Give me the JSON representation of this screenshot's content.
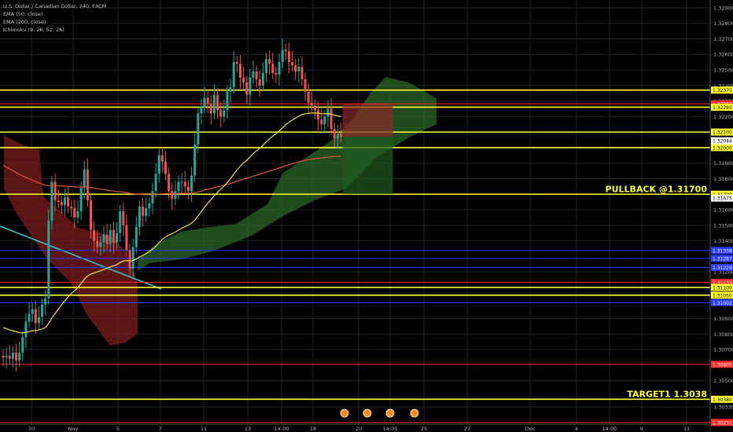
{
  "legend": {
    "symbol_line": "U.S. Dollar / Canadian Dollar, 240, FXCM",
    "ema50": "EMA (50, close)",
    "ema200": "EMA (200, close)",
    "ichimoku": "Ichimoku (9, 26, 52, 26)"
  },
  "colors": {
    "background": "#000000",
    "grid": "#1f2530",
    "up": "#26a69a",
    "down": "#ef5350",
    "ema50": "#f0e442",
    "ema200": "#e0533f",
    "kumo_bull": "#2e6b2a",
    "kumo_bear": "#7a1c1c",
    "hline_yellow": "#ffff33",
    "hline_blue": "#2a3bff",
    "hline_red": "#ff2a2a",
    "trendline": "#39c7c7"
  },
  "chart_data": {
    "type": "candlestick",
    "symbol": "U.S. Dollar / Canadian Dollar, 240, FXCM",
    "ylim": [
      1.3022,
      1.3295
    ],
    "price_ticks": [
      "1.32900",
      "1.32800",
      "1.32700",
      "1.32600",
      "1.32500",
      "1.32400",
      "1.32300",
      "1.32200",
      "1.32000",
      "1.31900",
      "1.31800",
      "1.31600",
      "1.31500",
      "1.31400",
      "1.31200",
      "1.30900",
      "1.30800",
      "1.30700",
      "1.30500",
      "1.30330"
    ],
    "x_tick_labels": [
      "30",
      "Nov",
      "5",
      "7",
      "11",
      "13",
      "14:00",
      "18",
      "20",
      "14:00",
      "25",
      "27",
      "Dec",
      "4",
      "14:00",
      "9",
      "11"
    ],
    "horizontal_levels": [
      {
        "price": "1.32370",
        "color": "yellow"
      },
      {
        "price": "1.32282",
        "color": "red"
      },
      {
        "price": "1.32260",
        "color": "yellow"
      },
      {
        "price": "1.32100",
        "color": "yellow"
      },
      {
        "price": "1.32000",
        "color": "yellow"
      },
      {
        "price": "1.31700",
        "color": "yellow"
      },
      {
        "price": "1.31338",
        "color": "blue"
      },
      {
        "price": "1.31287",
        "color": "blue"
      },
      {
        "price": "1.31229",
        "color": "blue"
      },
      {
        "price": "1.31133",
        "color": "red"
      },
      {
        "price": "1.31100",
        "color": "yellow"
      },
      {
        "price": "1.31050",
        "color": "yellow"
      },
      {
        "price": "1.31002",
        "color": "blue"
      },
      {
        "price": "1.30605",
        "color": "red"
      },
      {
        "price": "1.30380",
        "color": "yellow"
      },
      {
        "price": "1.30231",
        "color": "red"
      }
    ],
    "extra_tags": [
      {
        "price": "1.32044",
        "color": "white"
      },
      {
        "price": "1.31675",
        "color": "white"
      }
    ],
    "annotations": [
      {
        "text": "PULLBACK @1.31700",
        "price": 1.317
      },
      {
        "text": "TARGET1 1.3038",
        "price": 1.3038
      }
    ],
    "close": [
      1.3065,
      1.3066,
      1.3064,
      1.3068,
      1.3063,
      1.3068,
      1.3078,
      1.3088,
      1.3093,
      1.3096,
      1.3087,
      1.3091,
      1.3099,
      1.3103,
      1.3153,
      1.3178,
      1.3166,
      1.3165,
      1.3163,
      1.3168,
      1.3162,
      1.3161,
      1.3155,
      1.3159,
      1.3174,
      1.3186,
      1.3166,
      1.3147,
      1.314,
      1.3136,
      1.3139,
      1.3144,
      1.3138,
      1.3147,
      1.3139,
      1.3145,
      1.3159,
      1.315,
      1.3134,
      1.3122,
      1.3136,
      1.3149,
      1.3162,
      1.3156,
      1.3161,
      1.3164,
      1.3172,
      1.3183,
      1.3195,
      1.3191,
      1.3183,
      1.3172,
      1.3167,
      1.3172,
      1.3178,
      1.3178,
      1.3175,
      1.3172,
      1.3182,
      1.3202,
      1.3222,
      1.3226,
      1.3232,
      1.3228,
      1.3222,
      1.3234,
      1.3224,
      1.322,
      1.3224,
      1.3236,
      1.3239,
      1.3255,
      1.3254,
      1.3245,
      1.3242,
      1.3234,
      1.3245,
      1.3249,
      1.3244,
      1.324,
      1.3248,
      1.3257,
      1.3254,
      1.3248,
      1.3247,
      1.3255,
      1.3263,
      1.3262,
      1.3255,
      1.3253,
      1.3249,
      1.3252,
      1.3244,
      1.3236,
      1.3229,
      1.3227,
      1.3224,
      1.3218,
      1.3215,
      1.322,
      1.3225,
      1.3212,
      1.3206,
      1.3209,
      1.3207
    ]
  }
}
